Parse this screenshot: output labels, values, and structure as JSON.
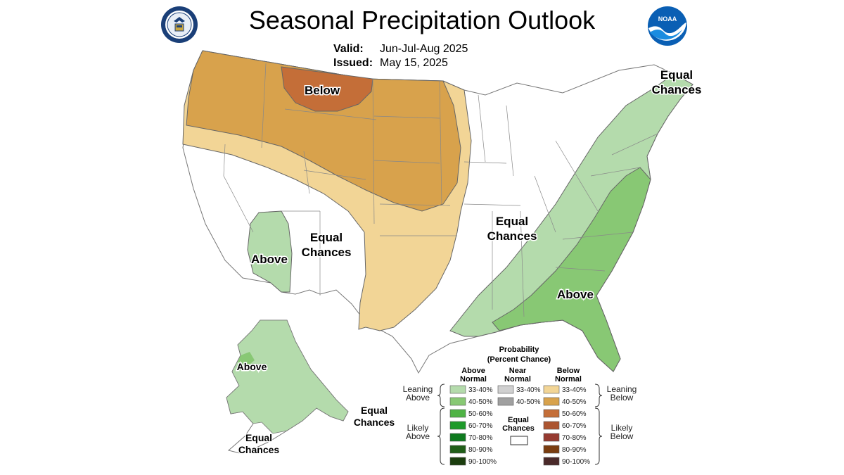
{
  "header": {
    "title": "Seasonal Precipitation Outlook",
    "valid_label": "Valid:",
    "valid_value": "Jun-Jul-Aug 2025",
    "issued_label": "Issued:",
    "issued_value": "May 15, 2025"
  },
  "logos": {
    "noaa_text": "NOAA"
  },
  "colors": {
    "below_33_40": "#f2d596",
    "below_40_50": "#d8a24c",
    "below_50_60": "#c46e38",
    "above_33_40": "#b4dbac",
    "above_40_50": "#88c874",
    "near_33_40": "#d0d0d0",
    "near_40_50": "#a0a0a0"
  },
  "map_labels": {
    "below": "Below",
    "equal_chances": "Equal Chances",
    "above": "Above"
  },
  "legend": {
    "title": "Probability",
    "subtitle": "(Percent Chance)",
    "above_header": "Above Normal",
    "near_header": "Near Normal",
    "below_header": "Below Normal",
    "leaning_above": "Leaning Above",
    "likely_above": "Likely Above",
    "leaning_below": "Leaning Below",
    "likely_below": "Likely Below",
    "equal_chances": "Equal Chances",
    "above_swatches": [
      {
        "label": "33-40%",
        "color": "#b4dbac"
      },
      {
        "label": "40-50%",
        "color": "#88c874"
      },
      {
        "label": "50-60%",
        "color": "#4fb345"
      },
      {
        "label": "60-70%",
        "color": "#1e9a2a"
      },
      {
        "label": "70-80%",
        "color": "#0e7a1e"
      },
      {
        "label": "80-90%",
        "color": "#205e18"
      },
      {
        "label": "90-100%",
        "color": "#1b3d0e"
      }
    ],
    "near_swatches": [
      {
        "label": "33-40%",
        "color": "#d0d0d0"
      },
      {
        "label": "40-50%",
        "color": "#a0a0a0"
      }
    ],
    "below_swatches": [
      {
        "label": "33-40%",
        "color": "#f2d596"
      },
      {
        "label": "40-50%",
        "color": "#d8a24c"
      },
      {
        "label": "50-60%",
        "color": "#c46e38"
      },
      {
        "label": "60-70%",
        "color": "#ac5530"
      },
      {
        "label": "70-80%",
        "color": "#963a30"
      },
      {
        "label": "80-90%",
        "color": "#7a3d10"
      },
      {
        "label": "90-100%",
        "color": "#4a2a2a"
      }
    ]
  }
}
